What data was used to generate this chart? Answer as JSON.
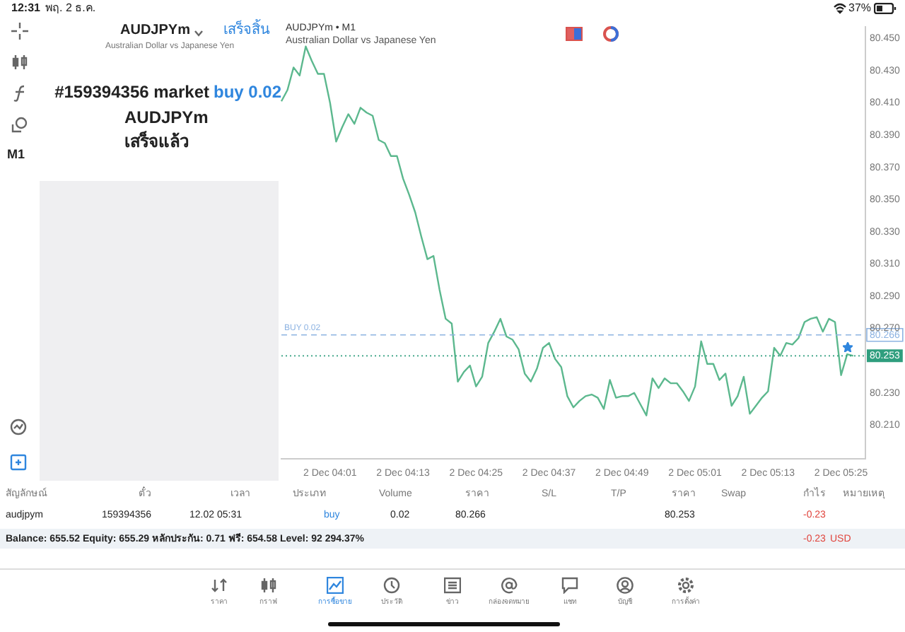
{
  "chart_data": {
    "type": "line",
    "title": "AUDJPYm • M1",
    "subtitle": "Australian Dollar vs Japanese Yen",
    "categories": [
      null,
      null,
      null,
      null,
      null,
      null,
      null,
      null,
      "2 Dec 04:01",
      null,
      null,
      null,
      null,
      null,
      null,
      null,
      null,
      null,
      null,
      null,
      "2 Dec 04:13",
      null,
      null,
      null,
      null,
      null,
      null,
      null,
      null,
      null,
      null,
      null,
      "2 Dec 04:25",
      null,
      null,
      null,
      null,
      null,
      null,
      null,
      null,
      null,
      null,
      null,
      "2 Dec 04:37",
      null,
      null,
      null,
      null,
      null,
      null,
      null,
      null,
      null,
      null,
      null,
      "2 Dec 04:49",
      null,
      null,
      null,
      null,
      null,
      null,
      null,
      null,
      null,
      null,
      null,
      "2 Dec 05:01",
      null,
      null,
      null,
      null,
      null,
      null,
      null,
      null,
      null,
      null,
      null,
      "2 Dec 05:13",
      null,
      null,
      null,
      null,
      null,
      null,
      null,
      null,
      null,
      null,
      null,
      "2 Dec 05:25",
      null,
      null,
      null,
      null
    ],
    "series": [
      {
        "color": "#5cb88e",
        "values": [
          80.411,
          80.418,
          80.432,
          80.427,
          80.445,
          80.436,
          80.428,
          80.428,
          80.41,
          80.386,
          80.395,
          80.403,
          80.397,
          80.407,
          80.404,
          80.402,
          80.387,
          80.385,
          80.377,
          80.377,
          80.363,
          80.353,
          80.342,
          80.327,
          80.313,
          80.315,
          80.294,
          80.276,
          80.273,
          80.237,
          80.243,
          80.247,
          80.234,
          80.24,
          80.261,
          80.268,
          80.276,
          80.265,
          80.263,
          80.257,
          80.242,
          80.237,
          80.245,
          80.258,
          80.261,
          80.251,
          80.246,
          80.228,
          80.221,
          80.225,
          80.228,
          80.229,
          80.227,
          80.22,
          80.238,
          80.227,
          80.228,
          80.228,
          80.23,
          80.223,
          80.216,
          80.239,
          80.233,
          80.239,
          80.236,
          80.236,
          80.231,
          80.225,
          80.234,
          80.262,
          80.248,
          80.248,
          80.238,
          80.242,
          80.222,
          80.228,
          80.24,
          80.217,
          80.222,
          80.227,
          80.231,
          80.258,
          80.253,
          80.261,
          80.26,
          80.264,
          80.274,
          80.276,
          80.277,
          80.268,
          80.276,
          80.274,
          80.241,
          80.254,
          80.253,
          null,
          null
        ]
      }
    ],
    "ylim": [
      80.189,
      80.457
    ],
    "yticks": [
      {
        "value": 80.21,
        "label": "80.210"
      },
      {
        "value": 80.23,
        "label": "80.230"
      },
      {
        "value": 80.27,
        "label": "80.270"
      },
      {
        "value": 80.29,
        "label": "80.290"
      },
      {
        "value": 80.31,
        "label": "80.310"
      },
      {
        "value": 80.33,
        "label": "80.330"
      },
      {
        "value": 80.35,
        "label": "80.350"
      },
      {
        "value": 80.37,
        "label": "80.370"
      },
      {
        "value": 80.39,
        "label": "80.390"
      },
      {
        "value": 80.41,
        "label": "80.410"
      },
      {
        "value": 80.43,
        "label": "80.430"
      },
      {
        "value": 80.45,
        "label": "80.450"
      }
    ],
    "ref_lines": [
      {
        "axis": "y",
        "value": 80.266,
        "label": "BUY 0.02",
        "color": "#8db3e2",
        "line_style": "dashed"
      },
      {
        "axis": "y",
        "value": 80.253,
        "color": "#2f9e7e",
        "line_style": "dotted"
      }
    ],
    "grid": false,
    "legend": false,
    "marker": "none",
    "line_style": "solid",
    "annotations": [
      "12:31",
      "พฤ. 2 ธ.ค.",
      "37%",
      "AUDJPYm",
      "Australian Dollar vs Japanese Yen",
      "เสร็จสิ้น",
      "#159394356 market",
      "buy 0.02",
      "AUDJPYm",
      "เสร็จแล้ว",
      "M1",
      "สัญลักษณ์",
      "ตั๋ว",
      "เวลา",
      "ประเภท",
      "Volume",
      "ราคา",
      "S/L",
      "T/P",
      "ราคา",
      "Swap",
      "กำไร",
      "หมายเหตุ",
      "audjpym",
      "159394356",
      "12.02 05:31",
      "buy",
      "0.02",
      "80.266",
      "80.253",
      "-0.23",
      "Balance: 655.52 Equity: 655.29 หลักประกัน: 0.71 ฟรี: 654.58 Level: 92 294.37%",
      "-0.23",
      "USD",
      "ราคา",
      "กราฟ",
      "การซื้อขาย",
      "ประวัติ",
      "ข่าว",
      "กล่องจดหมาย",
      "แชท",
      "บัญชี",
      "การตั้งค่า"
    ]
  }
}
